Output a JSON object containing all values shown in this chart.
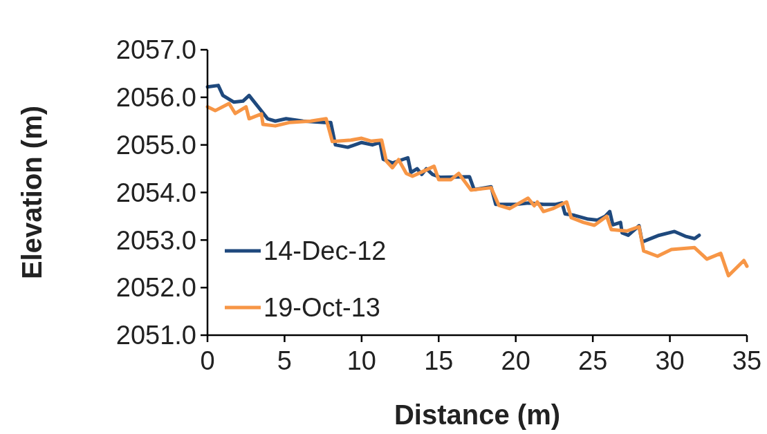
{
  "chart_data": {
    "type": "line",
    "xlabel": "Distance (m)",
    "ylabel": "Elevation (m)",
    "xlim": [
      0,
      35
    ],
    "xticks": [
      0,
      5,
      10,
      15,
      20,
      25,
      30,
      35
    ],
    "ylim": [
      2051,
      2057
    ],
    "yticks": [
      {
        "value": 2051,
        "label": "2051.0"
      },
      {
        "value": 2052,
        "label": "2052.0"
      },
      {
        "value": 2053,
        "label": "2053.0"
      },
      {
        "value": 2054,
        "label": "2054.0"
      },
      {
        "value": 2055,
        "label": "2055.0"
      },
      {
        "value": 2056,
        "label": "2056.0"
      },
      {
        "value": 2057,
        "label": "2057.0"
      }
    ],
    "grid": false,
    "legend": "bottom left",
    "marker": "none",
    "line_style": "solid",
    "series": [
      {
        "name": "14-Dec-12",
        "color": "#1f497d",
        "x": [
          0,
          0.7,
          1,
          1.7,
          2.3,
          2.7,
          3.9,
          4.4,
          5.1,
          6.2,
          7.6,
          8,
          8.3,
          9.1,
          10,
          10.7,
          11.2,
          11.4,
          12,
          13,
          13.2,
          13.6,
          13.9,
          14.2,
          14.6,
          15.1,
          17,
          17.3,
          18.4,
          18.7,
          20,
          20.9,
          21.8,
          22.6,
          23,
          23.2,
          23.8,
          24.7,
          25.3,
          25.8,
          26.1,
          26.3,
          26.8,
          26.9,
          27.3,
          28,
          28.2,
          29.3,
          30.3,
          31,
          31.6,
          31.9
        ],
        "values": [
          2056.22,
          2056.25,
          2056.04,
          2055.9,
          2055.92,
          2056.04,
          2055.55,
          2055.5,
          2055.55,
          2055.5,
          2055.47,
          2055.47,
          2055,
          2054.95,
          2055.05,
          2055,
          2055.05,
          2054.7,
          2054.62,
          2054.73,
          2054.42,
          2054.5,
          2054.38,
          2054.5,
          2054.38,
          2054.32,
          2054.33,
          2054.06,
          2054.12,
          2053.75,
          2053.75,
          2053.78,
          2053.75,
          2053.75,
          2053.78,
          2053.55,
          2053.52,
          2053.44,
          2053.42,
          2053.5,
          2053.6,
          2053.32,
          2053.37,
          2053.15,
          2053.1,
          2053.3,
          2052.96,
          2053.1,
          2053.18,
          2053.08,
          2053.03,
          2053.1
        ]
      },
      {
        "name": "19-Oct-13",
        "color": "#f79646",
        "x": [
          0,
          0.5,
          1.4,
          1.8,
          2.5,
          2.7,
          3.5,
          3.6,
          4.4,
          5.3,
          6.7,
          7.7,
          8.1,
          9.3,
          10,
          10.6,
          11.3,
          11.6,
          12,
          12.4,
          12.9,
          13.3,
          14.7,
          15,
          15.8,
          16.3,
          17.1,
          18.4,
          18.9,
          19.6,
          20.8,
          21.2,
          21.4,
          21.8,
          22.4,
          23.3,
          23.6,
          24.4,
          25.1,
          25.9,
          26.2,
          27.2,
          28,
          28.3,
          29.2,
          30.1,
          31.6,
          32.4,
          33.3,
          33.8,
          34.8,
          35
        ],
        "values": [
          2055.8,
          2055.72,
          2055.87,
          2055.66,
          2055.8,
          2055.55,
          2055.65,
          2055.43,
          2055.4,
          2055.47,
          2055.5,
          2055.55,
          2055.07,
          2055.1,
          2055.14,
          2055.08,
          2055.1,
          2054.66,
          2054.52,
          2054.69,
          2054.4,
          2054.34,
          2054.55,
          2054.27,
          2054.27,
          2054.4,
          2054.05,
          2054.1,
          2053.73,
          2053.66,
          2053.88,
          2053.72,
          2053.8,
          2053.6,
          2053.66,
          2053.8,
          2053.47,
          2053.37,
          2053.31,
          2053.5,
          2053.22,
          2053.19,
          2053.28,
          2052.77,
          2052.66,
          2052.8,
          2052.84,
          2052.6,
          2052.72,
          2052.25,
          2052.57,
          2052.45
        ]
      }
    ]
  }
}
